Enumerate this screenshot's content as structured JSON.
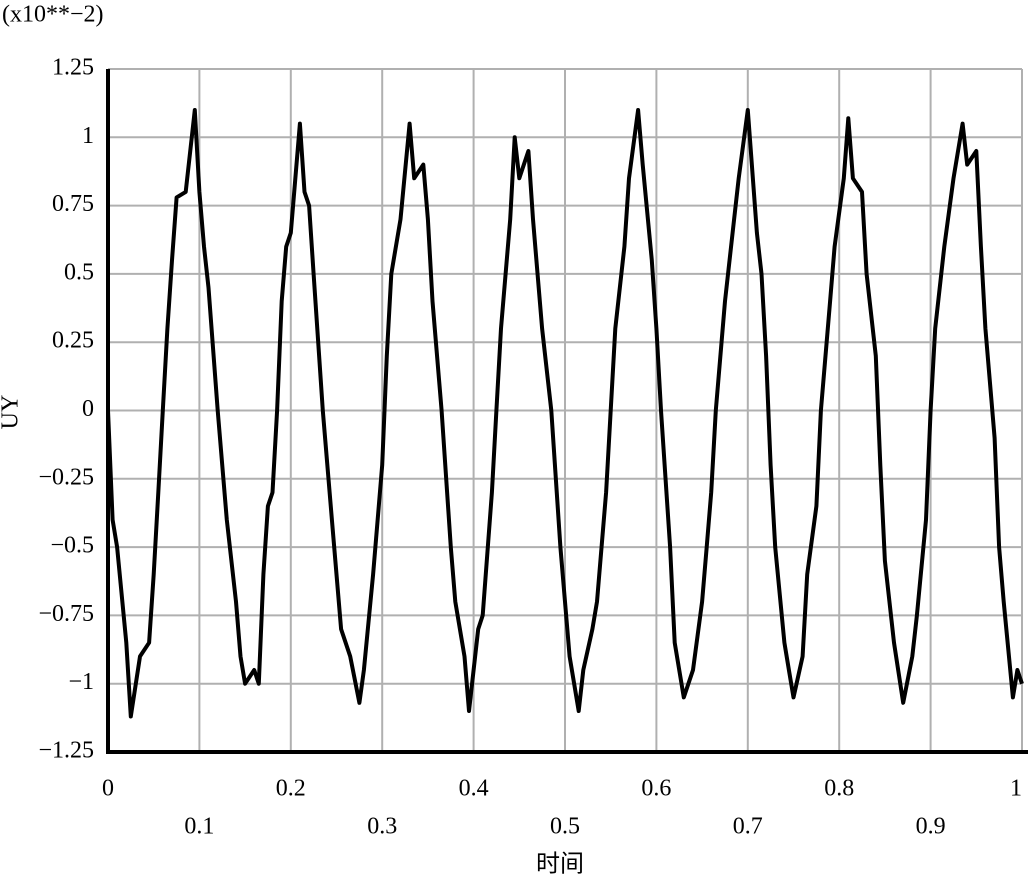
{
  "chart_data": {
    "type": "line",
    "unit_note": "(x10**−2)",
    "ylabel": "UY",
    "xlabel": "时间",
    "color": "#000000",
    "grid": true,
    "xlim": [
      0,
      1
    ],
    "ylim": [
      -1.25,
      1.25
    ],
    "xticks": [
      0,
      0.1,
      0.2,
      0.3,
      0.4,
      0.5,
      0.6,
      0.7,
      0.8,
      0.9,
      1
    ],
    "yticks": [
      {
        "value": -1.25,
        "label": "−1.25"
      },
      {
        "value": -1,
        "label": "−1"
      },
      {
        "value": -0.75,
        "label": "−0.75"
      },
      {
        "value": -0.5,
        "label": "−0.5"
      },
      {
        "value": -0.25,
        "label": "−0.25"
      },
      0,
      0.25,
      0.5,
      0.75,
      1,
      1.25
    ],
    "x": [
      0,
      0.005,
      0.01,
      0.02,
      0.025,
      0.035,
      0.045,
      0.05,
      0.055,
      0.06,
      0.065,
      0.07,
      0.075,
      0.085,
      0.095,
      0.1,
      0.105,
      0.11,
      0.12,
      0.13,
      0.14,
      0.145,
      0.15,
      0.16,
      0.165,
      0.17,
      0.175,
      0.18,
      0.185,
      0.19,
      0.195,
      0.2,
      0.21,
      0.215,
      0.22,
      0.225,
      0.235,
      0.245,
      0.255,
      0.265,
      0.275,
      0.28,
      0.29,
      0.3,
      0.305,
      0.31,
      0.32,
      0.33,
      0.335,
      0.345,
      0.35,
      0.355,
      0.365,
      0.375,
      0.38,
      0.39,
      0.395,
      0.405,
      0.41,
      0.42,
      0.425,
      0.43,
      0.44,
      0.445,
      0.45,
      0.46,
      0.465,
      0.475,
      0.485,
      0.495,
      0.505,
      0.515,
      0.52,
      0.53,
      0.535,
      0.545,
      0.55,
      0.555,
      0.565,
      0.57,
      0.58,
      0.585,
      0.595,
      0.6,
      0.605,
      0.615,
      0.62,
      0.63,
      0.64,
      0.65,
      0.655,
      0.66,
      0.665,
      0.675,
      0.685,
      0.69,
      0.7,
      0.71,
      0.715,
      0.72,
      0.725,
      0.73,
      0.74,
      0.745,
      0.75,
      0.76,
      0.765,
      0.775,
      0.78,
      0.79,
      0.795,
      0.805,
      0.81,
      0.815,
      0.825,
      0.83,
      0.84,
      0.845,
      0.85,
      0.86,
      0.87,
      0.88,
      0.885,
      0.895,
      0.9,
      0.905,
      0.915,
      0.925,
      0.935,
      0.94,
      0.95,
      0.955,
      0.96,
      0.97,
      0.975,
      0.98,
      0.99,
      0.995,
      1
    ],
    "values": [
      0,
      -0.4,
      -0.5,
      -0.85,
      -1.12,
      -0.9,
      -0.85,
      -0.6,
      -0.3,
      0,
      0.3,
      0.55,
      0.78,
      0.8,
      1.1,
      0.8,
      0.6,
      0.45,
      0,
      -0.4,
      -0.7,
      -0.9,
      -1.0,
      -0.95,
      -1.0,
      -0.6,
      -0.35,
      -0.3,
      0,
      0.4,
      0.6,
      0.65,
      1.05,
      0.8,
      0.75,
      0.5,
      0,
      -0.4,
      -0.8,
      -0.9,
      -1.07,
      -0.95,
      -0.6,
      -0.2,
      0.2,
      0.5,
      0.7,
      1.05,
      0.85,
      0.9,
      0.7,
      0.4,
      0,
      -0.5,
      -0.7,
      -0.9,
      -1.1,
      -0.8,
      -0.75,
      -0.3,
      0,
      0.3,
      0.7,
      1.0,
      0.85,
      0.95,
      0.7,
      0.3,
      0,
      -0.5,
      -0.9,
      -1.1,
      -0.95,
      -0.8,
      -0.7,
      -0.3,
      0,
      0.3,
      0.6,
      0.85,
      1.1,
      0.9,
      0.55,
      0.3,
      0,
      -0.5,
      -0.85,
      -1.05,
      -0.95,
      -0.7,
      -0.5,
      -0.3,
      0,
      0.4,
      0.7,
      0.85,
      1.1,
      0.65,
      0.5,
      0.2,
      -0.2,
      -0.5,
      -0.85,
      -0.95,
      -1.05,
      -0.9,
      -0.6,
      -0.35,
      0,
      0.4,
      0.6,
      0.85,
      1.07,
      0.85,
      0.8,
      0.5,
      0.2,
      -0.2,
      -0.55,
      -0.85,
      -1.07,
      -0.9,
      -0.75,
      -0.4,
      0,
      0.3,
      0.6,
      0.85,
      1.05,
      0.9,
      0.95,
      0.6,
      0.3,
      -0.1,
      -0.5,
      -0.7,
      -1.05,
      -0.95,
      -1.0
    ]
  }
}
